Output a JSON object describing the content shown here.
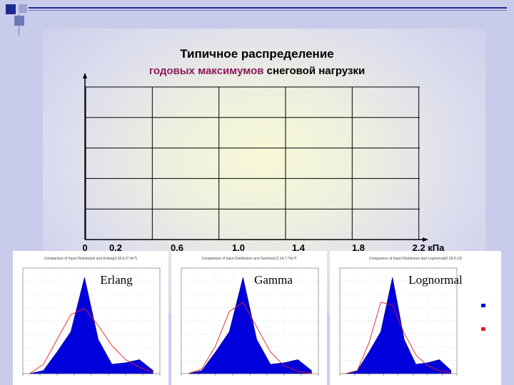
{
  "title": {
    "line1": "Типичное распределение",
    "line2_highlight": "годовых максимумов",
    "line2_rest": " снеговой нагрузки"
  },
  "colors": {
    "background": "#c9cbeb",
    "accent_blue": "#1f2a8f",
    "highlight_text": "#8a1a5a",
    "histogram_fill": "#0000dd",
    "fit_curve": "#e02020"
  },
  "chart_data": [
    {
      "type": "line",
      "title": "Типичное распределение годовых максимумов снеговой нагрузки",
      "xlabel": "",
      "ylabel": "",
      "x_ticks": [
        "0",
        "0,2",
        "0,6",
        "1,0",
        "1,4",
        "1,8",
        "2,2 кПа"
      ],
      "grid": true,
      "series": []
    },
    {
      "type": "area",
      "label": "Erlang",
      "caption": "Comparison of Input Distribution and Erlang(2,00;0,3*,4e?)",
      "x": [
        0.05,
        0.15,
        0.25,
        0.35,
        0.45,
        0.55,
        0.65,
        0.75,
        0.85,
        0.95
      ],
      "hist": [
        0.0,
        0.02,
        0.14,
        0.27,
        0.62,
        0.22,
        0.06,
        0.07,
        0.09,
        0.02
      ],
      "fit": [
        0.0,
        0.06,
        0.22,
        0.38,
        0.42,
        0.31,
        0.18,
        0.09,
        0.04,
        0.01
      ]
    },
    {
      "type": "area",
      "label": "Gamma",
      "caption": "Comparison of Input Distribution and Gamma(12,14;7,73e?)",
      "x": [
        0.05,
        0.15,
        0.25,
        0.35,
        0.45,
        0.55,
        0.65,
        0.75,
        0.85,
        0.95
      ],
      "hist": [
        0.0,
        0.02,
        0.14,
        0.27,
        0.62,
        0.22,
        0.06,
        0.07,
        0.09,
        0.02
      ],
      "fit": [
        0.0,
        0.03,
        0.18,
        0.4,
        0.46,
        0.3,
        0.14,
        0.05,
        0.015,
        0.0
      ]
    },
    {
      "type": "area",
      "label": "Lognormal",
      "caption": "Comparison of Input Distribution and Lognormal(0,35;0,13)",
      "x": [
        0.05,
        0.15,
        0.25,
        0.35,
        0.45,
        0.55,
        0.65,
        0.75,
        0.85,
        0.95
      ],
      "hist": [
        0.0,
        0.02,
        0.14,
        0.27,
        0.62,
        0.22,
        0.06,
        0.07,
        0.09,
        0.02
      ],
      "fit": [
        0.0,
        0.02,
        0.2,
        0.46,
        0.44,
        0.26,
        0.12,
        0.05,
        0.02,
        0.005
      ]
    }
  ]
}
